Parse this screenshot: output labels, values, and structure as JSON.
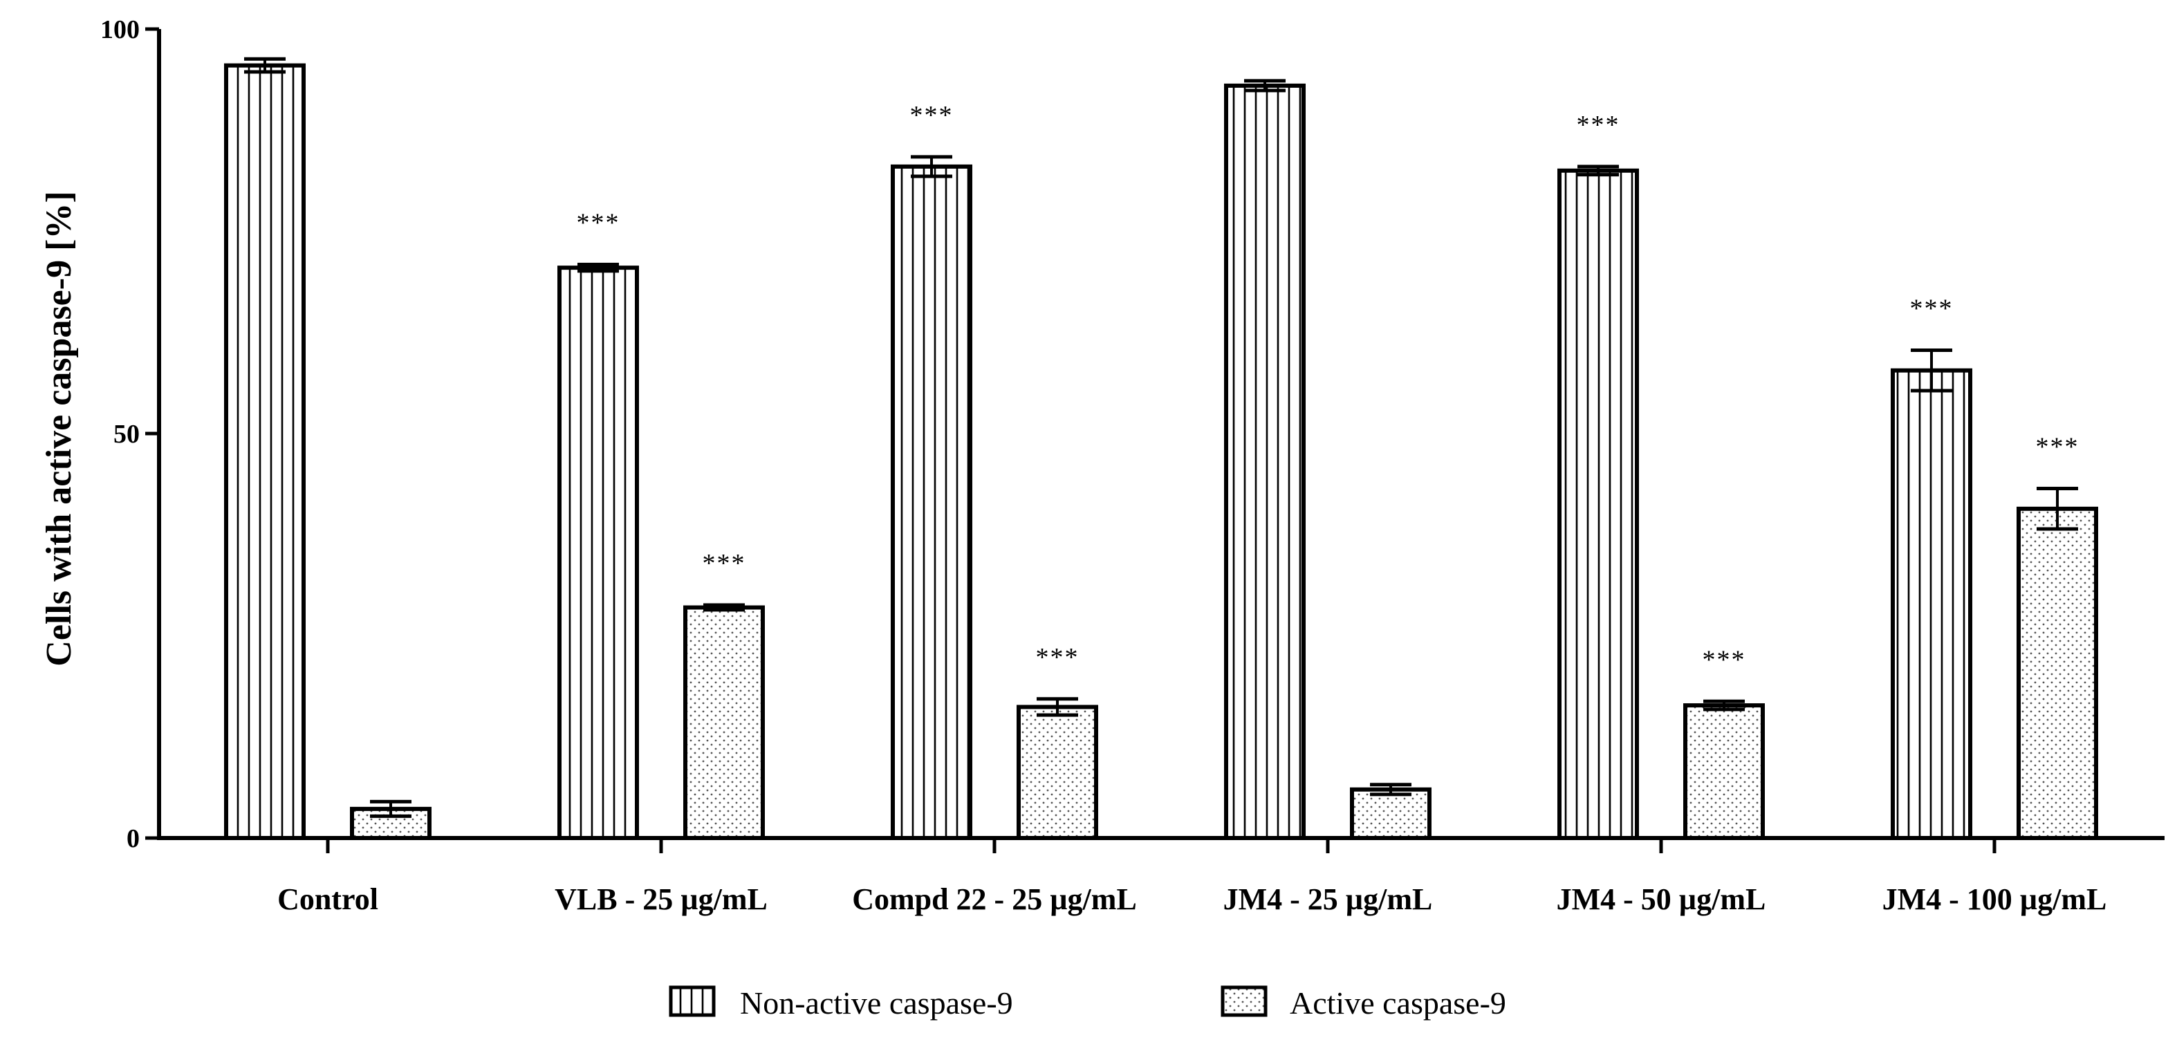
{
  "chart_data": {
    "type": "bar",
    "title": "",
    "xlabel": "",
    "ylabel": "Cells with active caspase-9 [%]",
    "ylim": [
      0,
      100
    ],
    "yticks": [
      "0",
      "50",
      "100"
    ],
    "categories": [
      "Control",
      "VLB - 25 µg/mL",
      "Compd 22 - 25 µg/mL",
      "JM4 - 25 µg/mL",
      "JM4 - 50 µg/mL",
      "JM4 - 100 µg/mL"
    ],
    "series": [
      {
        "name": "Non-active caspase-9",
        "pattern": "vertical-lines",
        "values": [
          95.5,
          70.5,
          83,
          93,
          82.5,
          57.8
        ],
        "errors": [
          0.8,
          0.4,
          1.2,
          0.6,
          0.5,
          2.5
        ],
        "significance": [
          "",
          "***",
          "***",
          "",
          "***",
          "***"
        ]
      },
      {
        "name": "Active caspase-9",
        "pattern": "dots",
        "values": [
          3.6,
          28.5,
          16.2,
          6.0,
          16.4,
          40.7
        ],
        "errors": [
          0.9,
          0.3,
          1.0,
          0.6,
          0.5,
          2.5
        ],
        "significance": [
          "",
          "***",
          "***",
          "",
          "***",
          "***"
        ]
      }
    ],
    "legend_position": "bottom-center"
  }
}
